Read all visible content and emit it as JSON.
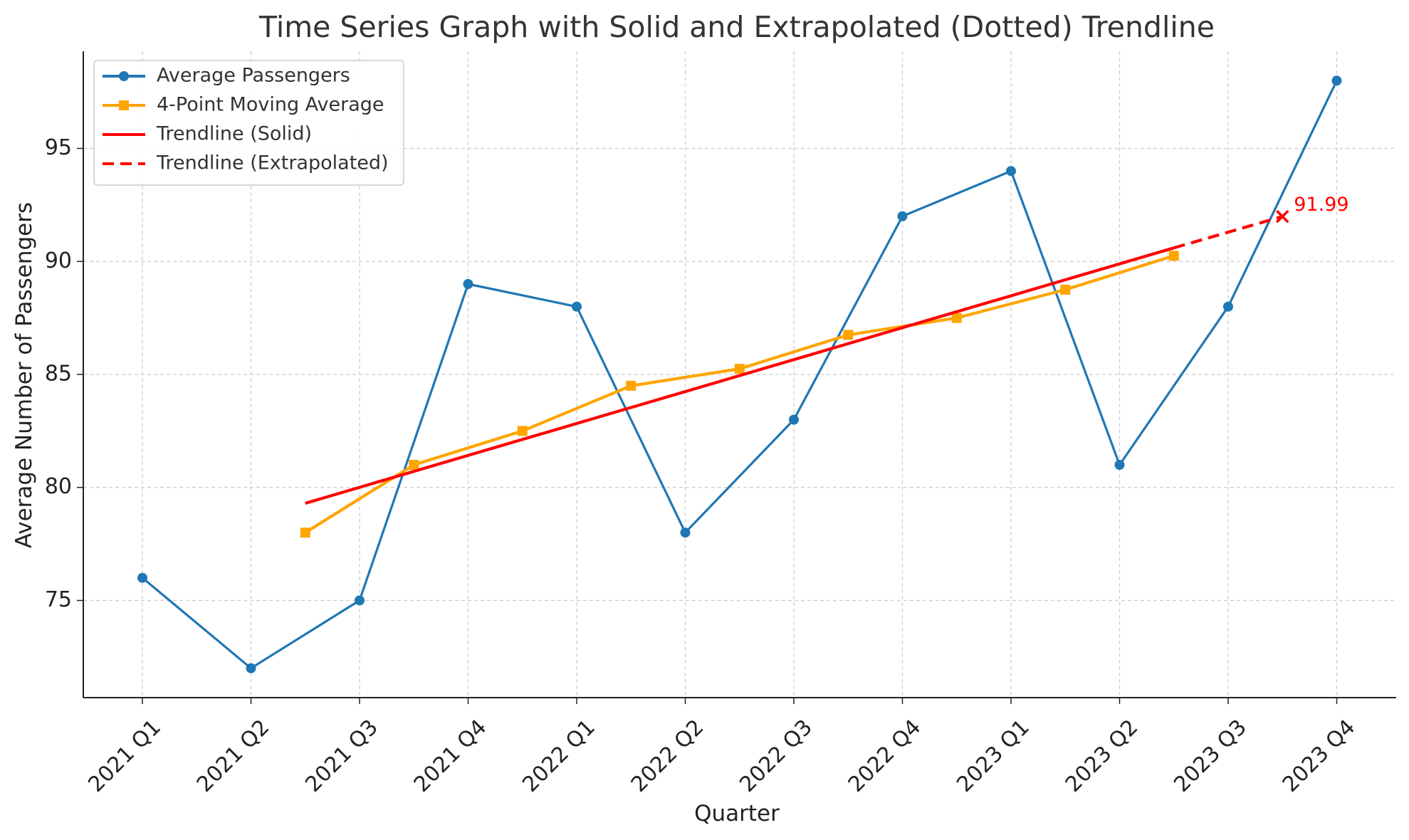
{
  "chart_data": {
    "type": "line",
    "title": "Time Series Graph with Solid and Extrapolated (Dotted) Trendline",
    "xlabel": "Quarter",
    "ylabel": "Average Number of Passengers",
    "categories": [
      "2021 Q1",
      "2021 Q2",
      "2021 Q3",
      "2021 Q4",
      "2022 Q1",
      "2022 Q2",
      "2022 Q3",
      "2022 Q4",
      "2023 Q1",
      "2023 Q2",
      "2023 Q3",
      "2023 Q4"
    ],
    "yticks": [
      75,
      80,
      85,
      90,
      95
    ],
    "ylim": [
      70.7,
      99.3
    ],
    "grid": true,
    "legend_position": "top-left",
    "series": [
      {
        "name": "Average Passengers",
        "color": "#1f77b4",
        "marker": "circle",
        "x": [
          0,
          1,
          2,
          3,
          4,
          5,
          6,
          7,
          8,
          9,
          10,
          11
        ],
        "values": [
          76,
          72,
          75,
          89,
          88,
          78,
          83,
          92,
          94,
          81,
          88,
          98
        ]
      },
      {
        "name": "4-Point Moving Average",
        "color": "#ffa500",
        "marker": "square",
        "x": [
          1.5,
          2.5,
          3.5,
          4.5,
          5.5,
          6.5,
          7.5,
          8.5,
          9.5
        ],
        "values": [
          78.0,
          81.0,
          82.5,
          84.5,
          85.25,
          86.75,
          87.5,
          88.75,
          90.25
        ]
      },
      {
        "name": "Trendline (Solid)",
        "color": "#ff0000",
        "style": "solid",
        "x": [
          1.5,
          9.5
        ],
        "values": [
          79.3,
          90.6
        ]
      },
      {
        "name": "Trendline (Extrapolated)",
        "color": "#ff0000",
        "style": "dashed",
        "x": [
          9.5,
          10.5
        ],
        "values": [
          90.6,
          91.99
        ]
      }
    ],
    "annotations": [
      {
        "text": "91.99",
        "x": 10.5,
        "y": 91.99,
        "marker": "x",
        "color": "#ff0000"
      }
    ]
  }
}
